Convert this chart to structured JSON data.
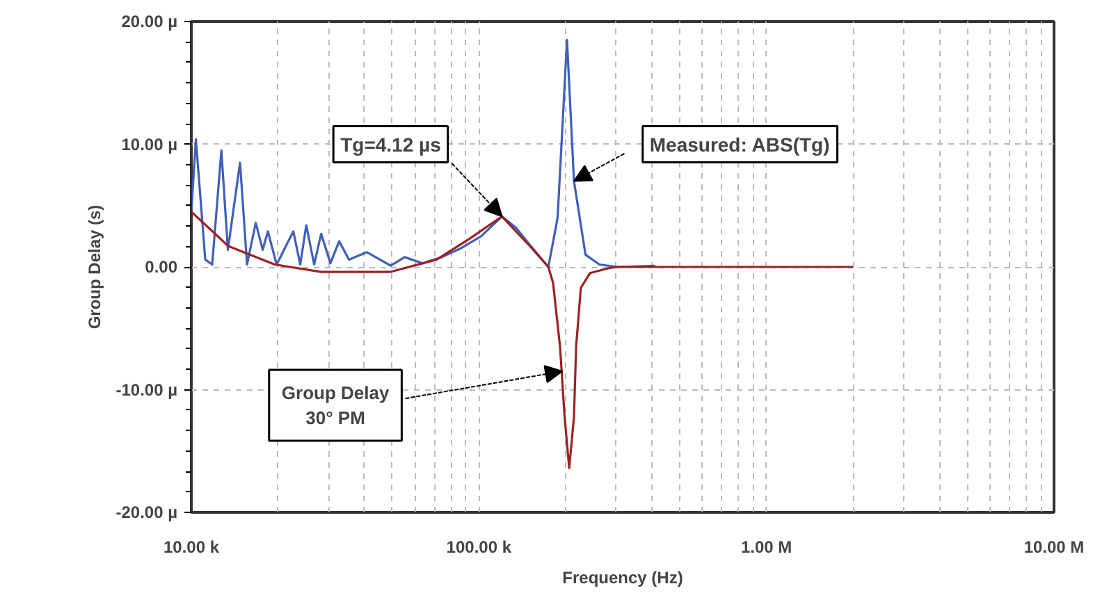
{
  "chart_data": {
    "type": "line",
    "xlabel": "Frequency (Hz)",
    "ylabel": "Group Delay (s)",
    "log": "x",
    "grid": true,
    "line_style": "solid",
    "xlim": [
      10000,
      10000000
    ],
    "xticks": [
      {
        "value": 10000,
        "label": "10.00 k"
      },
      {
        "value": 100000,
        "label": "100.00 k"
      },
      {
        "value": 1000000,
        "label": "1.00 M"
      },
      {
        "value": 10000000,
        "label": "10.00 M"
      }
    ],
    "ylim": [
      -20,
      20
    ],
    "yticks": [
      {
        "value": -20,
        "label": "-20.00 µ"
      },
      {
        "value": -10,
        "label": "-10.00 µ"
      },
      {
        "value": 0,
        "label": "0.00"
      },
      {
        "value": 10,
        "label": "10.00 µ"
      },
      {
        "value": 20,
        "label": "20.00 µ"
      }
    ],
    "series": [
      {
        "color": "#3f5fb8",
        "x": [
          10000,
          10370,
          11180,
          11820,
          12720,
          13400,
          14770,
          15620,
          16750,
          17710,
          18460,
          19800,
          22630,
          23920,
          25100,
          26740,
          28280,
          30460,
          32680,
          35330,
          40830,
          49350,
          55170,
          63750,
          74280,
          86130,
          101800,
          120300,
          134500,
          150400,
          174400,
          187800,
          202500,
          214100,
          234800,
          262400,
          303400,
          409800
        ],
        "values": [
          4.5,
          10.4,
          0.6,
          0.2,
          9.5,
          1.4,
          8.5,
          0.2,
          3.6,
          1.4,
          2.9,
          0.2,
          2.9,
          0.2,
          3.4,
          0.2,
          2.7,
          0.3,
          2.1,
          0.6,
          1.2,
          0.1,
          0.8,
          0.3,
          0.8,
          1.5,
          2.5,
          4.12,
          3.2,
          1.8,
          0.0,
          4.0,
          18.5,
          7.0,
          1.0,
          0.2,
          0.0,
          0.1
        ]
      },
      {
        "color": "#9b2222",
        "x": [
          10000,
          13450,
          19510,
          28280,
          49350,
          71300,
          92800,
          120300,
          150400,
          174400,
          181100,
          191500,
          198600,
          206100,
          214100,
          217800,
          226200,
          243500,
          282800,
          303400,
          2000000
        ],
        "values": [
          4.5,
          1.7,
          0.2,
          -0.4,
          -0.4,
          0.6,
          2.3,
          4.12,
          1.7,
          0.0,
          -1.3,
          -6.5,
          -12.2,
          -16.4,
          -12.2,
          -6.5,
          -1.7,
          -0.5,
          -0.1,
          0.0,
          0.0
        ]
      }
    ],
    "annotations": [
      {
        "text": "Tg=4.12 µs",
        "x": 120300,
        "y": 4.12
      },
      {
        "text": "Measured: ABS(Tg)",
        "x": 214100,
        "y": 7.0
      },
      {
        "text": "Group Delay\n30° PM",
        "x": 195000,
        "y": -8.5
      }
    ]
  }
}
